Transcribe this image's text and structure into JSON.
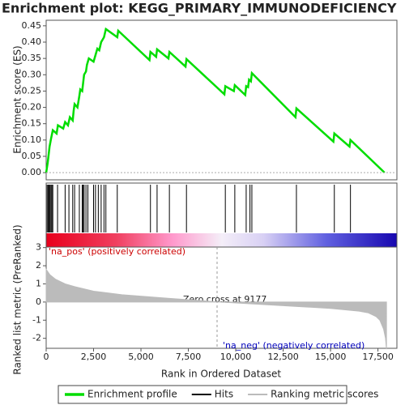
{
  "chart_data": [
    {
      "type": "line",
      "title": "Enrichment plot: KEGG_PRIMARY_IMMUNODEFICIENCY",
      "ylabel": "Enrichment score (ES)",
      "x": [
        0,
        80,
        130,
        180,
        260,
        350,
        550,
        620,
        900,
        1000,
        1150,
        1250,
        1400,
        1450,
        1500,
        1650,
        1750,
        1800,
        1900,
        1950,
        2000,
        2100,
        2150,
        2250,
        2500,
        2600,
        2700,
        2800,
        2900,
        3050,
        3150,
        3750,
        3800,
        5450,
        5500,
        5800,
        5850,
        6450,
        6500,
        7350,
        7400,
        9400,
        9450,
        9900,
        9950,
        10500,
        10550,
        10650,
        10700,
        10800,
        10850,
        13150,
        13200,
        15150,
        15200,
        16000,
        16050,
        17850
      ],
      "series": [
        {
          "name": "Enrichment profile",
          "color": "#00dd00",
          "values": [
            0.0,
            0.03,
            0.055,
            0.08,
            0.105,
            0.13,
            0.12,
            0.145,
            0.135,
            0.155,
            0.145,
            0.17,
            0.16,
            0.19,
            0.21,
            0.2,
            0.235,
            0.255,
            0.25,
            0.275,
            0.3,
            0.31,
            0.33,
            0.35,
            0.34,
            0.36,
            0.38,
            0.375,
            0.4,
            0.415,
            0.44,
            0.415,
            0.435,
            0.345,
            0.37,
            0.355,
            0.378,
            0.35,
            0.37,
            0.325,
            0.348,
            0.24,
            0.265,
            0.25,
            0.268,
            0.238,
            0.265,
            0.262,
            0.285,
            0.28,
            0.305,
            0.17,
            0.197,
            0.095,
            0.12,
            0.08,
            0.1,
            0.0
          ]
        }
      ],
      "ylim": [
        -0.022,
        0.467
      ],
      "xlim": [
        0,
        18500
      ],
      "yticks": [
        {
          "value": 0,
          "label": "0.00"
        },
        0.05,
        {
          "value": 0.1,
          "label": "0.10"
        },
        0.15,
        {
          "value": 0.2,
          "label": "0.20"
        },
        0.25,
        {
          "value": 0.3,
          "label": "0.30"
        },
        0.35,
        {
          "value": 0.4,
          "label": "0.40"
        },
        0.45
      ]
    },
    {
      "type": "rug",
      "x": [
        50,
        100,
        150,
        200,
        250,
        300,
        350,
        600,
        1000,
        1200,
        1400,
        1500,
        1750,
        1900,
        1950,
        2000,
        2100,
        2200,
        2500,
        2600,
        2750,
        2900,
        3050,
        3150,
        3750,
        5500,
        5850,
        6500,
        7400,
        9450,
        9950,
        10550,
        10750,
        10850,
        13200,
        15200,
        16050
      ],
      "series": [
        {
          "name": "Hits",
          "color": "#000000"
        }
      ],
      "xlim": [
        0,
        18500
      ]
    },
    {
      "type": "area",
      "ylabel": "Ranked list metric (PreRanked)",
      "xlabel": "Rank in Ordered Dataset",
      "annotations": [
        "'na_pos' (positively correlated)",
        "Zero cross at 9177",
        "'na_neg' (negatively correlated)"
      ],
      "x": [
        0,
        200,
        500,
        1000,
        1500,
        2500,
        4000,
        6500,
        9177,
        12500,
        15000,
        16500,
        17000,
        17400,
        17600,
        17800,
        17900,
        17950
      ],
      "series": [
        {
          "name": "Ranking metric scores",
          "color": "#bbbbbb",
          "values": [
            1.8,
            1.5,
            1.25,
            1.0,
            0.85,
            0.6,
            0.4,
            0.2,
            0.0,
            -0.2,
            -0.35,
            -0.5,
            -0.6,
            -0.8,
            -1.0,
            -1.5,
            -2.0,
            -2.6
          ]
        }
      ],
      "ylim": [
        -2.55,
        3.03
      ],
      "yticks": [
        -2,
        -1,
        0,
        1,
        2,
        3
      ],
      "xlim": [
        0,
        18500
      ],
      "xticks": [
        0,
        {
          "value": 2500,
          "label": "2,500"
        },
        {
          "value": 5000,
          "label": "5,000"
        },
        {
          "value": 7500,
          "label": "7,500"
        },
        {
          "value": 10000,
          "label": "10,000"
        },
        {
          "value": 12500,
          "label": "12,500"
        },
        {
          "value": 15000,
          "label": "15,000"
        },
        {
          "value": 17500,
          "label": "17,500"
        }
      ]
    }
  ]
}
